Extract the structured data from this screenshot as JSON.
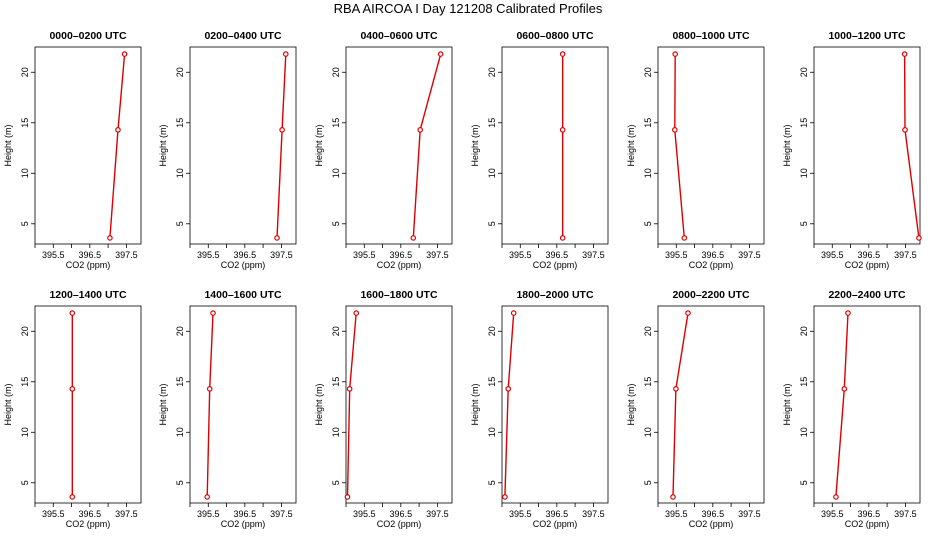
{
  "figure": {
    "title": "RBA AIRCOA I  Day 121208  Calibrated Profiles"
  },
  "colors": {
    "series": "#dd0000",
    "axis": "#000000",
    "background": "#ffffff"
  },
  "chart_data": [
    {
      "type": "line",
      "title": "0000–0200 UTC",
      "xlabel": "CO2 (ppm)",
      "ylabel": "Height (m)",
      "xlim": [
        395.0,
        397.9
      ],
      "ylim": [
        3.0,
        22.5
      ],
      "xticks": [
        "395.5",
        "396.5",
        "397.5"
      ],
      "xtick_values": [
        395.5,
        396.5,
        397.5
      ],
      "xtick_minor": [
        395.0,
        396.0,
        397.0
      ],
      "yticks": [
        "5",
        "10",
        "15",
        "20"
      ],
      "ytick_values": [
        5,
        10,
        15,
        20
      ],
      "series": [
        {
          "x": [
            397.05,
            397.27,
            397.45
          ],
          "y": [
            3.6,
            14.3,
            21.8
          ]
        }
      ]
    },
    {
      "type": "line",
      "title": "0200–0400 UTC",
      "xlabel": "CO2 (ppm)",
      "ylabel": "Height (m)",
      "xlim": [
        395.0,
        397.9
      ],
      "ylim": [
        3.0,
        22.5
      ],
      "xticks": [
        "395.5",
        "396.5",
        "397.5"
      ],
      "xtick_values": [
        395.5,
        396.5,
        397.5
      ],
      "xtick_minor": [
        395.0,
        396.0,
        397.0
      ],
      "yticks": [
        "5",
        "10",
        "15",
        "20"
      ],
      "ytick_values": [
        5,
        10,
        15,
        20
      ],
      "series": [
        {
          "x": [
            397.38,
            397.52,
            397.62
          ],
          "y": [
            3.6,
            14.3,
            21.8
          ]
        }
      ]
    },
    {
      "type": "line",
      "title": "0400–0600 UTC",
      "xlabel": "CO2 (ppm)",
      "ylabel": "Height (m)",
      "xlim": [
        395.0,
        397.9
      ],
      "ylim": [
        3.0,
        22.5
      ],
      "xticks": [
        "395.5",
        "396.5",
        "397.5"
      ],
      "xtick_values": [
        395.5,
        396.5,
        397.5
      ],
      "xtick_minor": [
        395.0,
        396.0,
        397.0
      ],
      "yticks": [
        "5",
        "10",
        "15",
        "20"
      ],
      "ytick_values": [
        5,
        10,
        15,
        20
      ],
      "series": [
        {
          "x": [
            396.84,
            397.03,
            397.59
          ],
          "y": [
            3.6,
            14.3,
            21.8
          ]
        }
      ]
    },
    {
      "type": "line",
      "title": "0600–0800 UTC",
      "xlabel": "CO2 (ppm)",
      "ylabel": "Height (m)",
      "xlim": [
        395.0,
        397.9
      ],
      "ylim": [
        3.0,
        22.5
      ],
      "xticks": [
        "395.5",
        "396.5",
        "397.5"
      ],
      "xtick_values": [
        395.5,
        396.5,
        397.5
      ],
      "xtick_minor": [
        395.0,
        396.0,
        397.0
      ],
      "yticks": [
        "5",
        "10",
        "15",
        "20"
      ],
      "ytick_values": [
        5,
        10,
        15,
        20
      ],
      "series": [
        {
          "x": [
            396.66,
            396.66,
            396.66
          ],
          "y": [
            3.6,
            14.3,
            21.8
          ]
        }
      ]
    },
    {
      "type": "line",
      "title": "0800–1000 UTC",
      "xlabel": "CO2 (ppm)",
      "ylabel": "Height (m)",
      "xlim": [
        395.0,
        397.9
      ],
      "ylim": [
        3.0,
        22.5
      ],
      "xticks": [
        "395.5",
        "396.5",
        "397.5"
      ],
      "xtick_values": [
        395.5,
        396.5,
        397.5
      ],
      "xtick_minor": [
        395.0,
        396.0,
        397.0
      ],
      "yticks": [
        "5",
        "10",
        "15",
        "20"
      ],
      "ytick_values": [
        5,
        10,
        15,
        20
      ],
      "series": [
        {
          "x": [
            395.72,
            395.46,
            395.47
          ],
          "y": [
            3.6,
            14.3,
            21.8
          ]
        }
      ]
    },
    {
      "type": "line",
      "title": "1000–1200 UTC",
      "xlabel": "CO2 (ppm)",
      "ylabel": "Height (m)",
      "xlim": [
        395.0,
        397.9
      ],
      "ylim": [
        3.0,
        22.5
      ],
      "xticks": [
        "395.5",
        "396.5",
        "397.5"
      ],
      "xtick_values": [
        395.5,
        396.5,
        397.5
      ],
      "xtick_minor": [
        395.0,
        396.0,
        397.0
      ],
      "yticks": [
        "5",
        "10",
        "15",
        "20"
      ],
      "ytick_values": [
        5,
        10,
        15,
        20
      ],
      "series": [
        {
          "x": [
            397.87,
            397.49,
            397.48
          ],
          "y": [
            3.6,
            14.3,
            21.8
          ]
        }
      ]
    },
    {
      "type": "line",
      "title": "1200–1400 UTC",
      "xlabel": "CO2 (ppm)",
      "ylabel": "Height (m)",
      "xlim": [
        395.0,
        397.9
      ],
      "ylim": [
        3.0,
        22.5
      ],
      "xticks": [
        "395.5",
        "396.5",
        "397.5"
      ],
      "xtick_values": [
        395.5,
        396.5,
        397.5
      ],
      "xtick_minor": [
        395.0,
        396.0,
        397.0
      ],
      "yticks": [
        "5",
        "10",
        "15",
        "20"
      ],
      "ytick_values": [
        5,
        10,
        15,
        20
      ],
      "series": [
        {
          "x": [
            396.02,
            396.02,
            396.02
          ],
          "y": [
            3.6,
            14.3,
            21.8
          ]
        }
      ]
    },
    {
      "type": "line",
      "title": "1400–1600 UTC",
      "xlabel": "CO2 (ppm)",
      "ylabel": "Height (m)",
      "xlim": [
        395.0,
        397.9
      ],
      "ylim": [
        3.0,
        22.5
      ],
      "xticks": [
        "395.5",
        "396.5",
        "397.5"
      ],
      "xtick_values": [
        395.5,
        396.5,
        397.5
      ],
      "xtick_minor": [
        395.0,
        396.0,
        397.0
      ],
      "yticks": [
        "5",
        "10",
        "15",
        "20"
      ],
      "ytick_values": [
        5,
        10,
        15,
        20
      ],
      "series": [
        {
          "x": [
            395.47,
            395.54,
            395.63
          ],
          "y": [
            3.6,
            14.3,
            21.8
          ]
        }
      ]
    },
    {
      "type": "line",
      "title": "1600–1800 UTC",
      "xlabel": "CO2 (ppm)",
      "ylabel": "Height (m)",
      "xlim": [
        395.0,
        397.9
      ],
      "ylim": [
        3.0,
        22.5
      ],
      "xticks": [
        "395.5",
        "396.5",
        "397.5"
      ],
      "xtick_values": [
        395.5,
        396.5,
        397.5
      ],
      "xtick_minor": [
        395.0,
        396.0,
        397.0
      ],
      "yticks": [
        "5",
        "10",
        "15",
        "20"
      ],
      "ytick_values": [
        5,
        10,
        15,
        20
      ],
      "series": [
        {
          "x": [
            395.04,
            395.1,
            395.28
          ],
          "y": [
            3.6,
            14.3,
            21.8
          ]
        }
      ]
    },
    {
      "type": "line",
      "title": "1800–2000 UTC",
      "xlabel": "CO2 (ppm)",
      "ylabel": "Height (m)",
      "xlim": [
        395.0,
        397.9
      ],
      "ylim": [
        3.0,
        22.5
      ],
      "xticks": [
        "395.5",
        "396.5",
        "397.5"
      ],
      "xtick_values": [
        395.5,
        396.5,
        397.5
      ],
      "xtick_minor": [
        395.0,
        396.0,
        397.0
      ],
      "yticks": [
        "5",
        "10",
        "15",
        "20"
      ],
      "ytick_values": [
        5,
        10,
        15,
        20
      ],
      "series": [
        {
          "x": [
            395.08,
            395.17,
            395.32
          ],
          "y": [
            3.6,
            14.3,
            21.8
          ]
        }
      ]
    },
    {
      "type": "line",
      "title": "2000–2200 UTC",
      "xlabel": "CO2 (ppm)",
      "ylabel": "Height (m)",
      "xlim": [
        395.0,
        397.9
      ],
      "ylim": [
        3.0,
        22.5
      ],
      "xticks": [
        "395.5",
        "396.5",
        "397.5"
      ],
      "xtick_values": [
        395.5,
        396.5,
        397.5
      ],
      "xtick_minor": [
        395.0,
        396.0,
        397.0
      ],
      "yticks": [
        "5",
        "10",
        "15",
        "20"
      ],
      "ytick_values": [
        5,
        10,
        15,
        20
      ],
      "series": [
        {
          "x": [
            395.41,
            395.49,
            395.82
          ],
          "y": [
            3.6,
            14.3,
            21.8
          ]
        }
      ]
    },
    {
      "type": "line",
      "title": "2200–2400 UTC",
      "xlabel": "CO2 (ppm)",
      "ylabel": "Height (m)",
      "xlim": [
        395.0,
        397.9
      ],
      "ylim": [
        3.0,
        22.5
      ],
      "xticks": [
        "395.5",
        "396.5",
        "397.5"
      ],
      "xtick_values": [
        395.5,
        396.5,
        397.5
      ],
      "xtick_minor": [
        395.0,
        396.0,
        397.0
      ],
      "yticks": [
        "5",
        "10",
        "15",
        "20"
      ],
      "ytick_values": [
        5,
        10,
        15,
        20
      ],
      "series": [
        {
          "x": [
            395.6,
            395.83,
            395.93
          ],
          "y": [
            3.6,
            14.3,
            21.8
          ]
        }
      ]
    }
  ]
}
